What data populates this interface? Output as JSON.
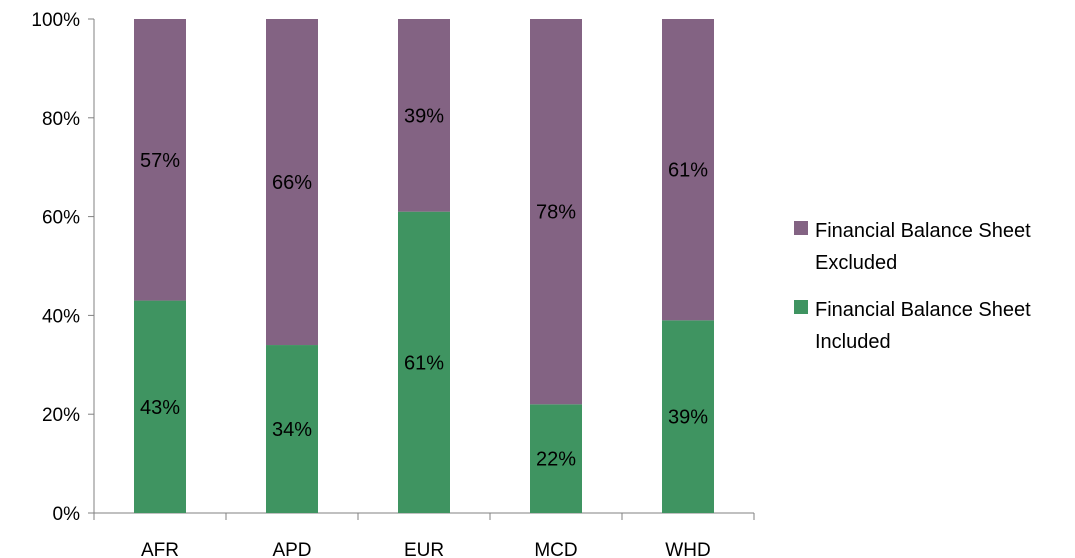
{
  "chart_data": {
    "type": "bar",
    "stacked": true,
    "percent_axis": true,
    "categories": [
      "AFR",
      "APD",
      "EUR",
      "MCD",
      "WHD"
    ],
    "series": [
      {
        "name": "Financial Balance Sheet Included",
        "values": [
          43,
          34,
          61,
          22,
          39
        ],
        "labels": [
          "43%",
          "34%",
          "61%",
          "22%",
          "39%"
        ],
        "color": "#3f9461"
      },
      {
        "name": "Financial Balance Sheet Excluded",
        "values": [
          57,
          66,
          39,
          78,
          61
        ],
        "labels": [
          "57%",
          "66%",
          "39%",
          "78%",
          "61%"
        ],
        "color": "#836383"
      }
    ],
    "ylim": [
      0,
      100
    ],
    "y_ticks": [
      "0%",
      "20%",
      "40%",
      "60%",
      "80%",
      "100%"
    ],
    "grid": false,
    "legend_position": "right",
    "legend_lines": [
      [
        "Financial Balance Sheet",
        "Excluded"
      ],
      [
        "Financial Balance Sheet",
        "Included"
      ]
    ]
  }
}
